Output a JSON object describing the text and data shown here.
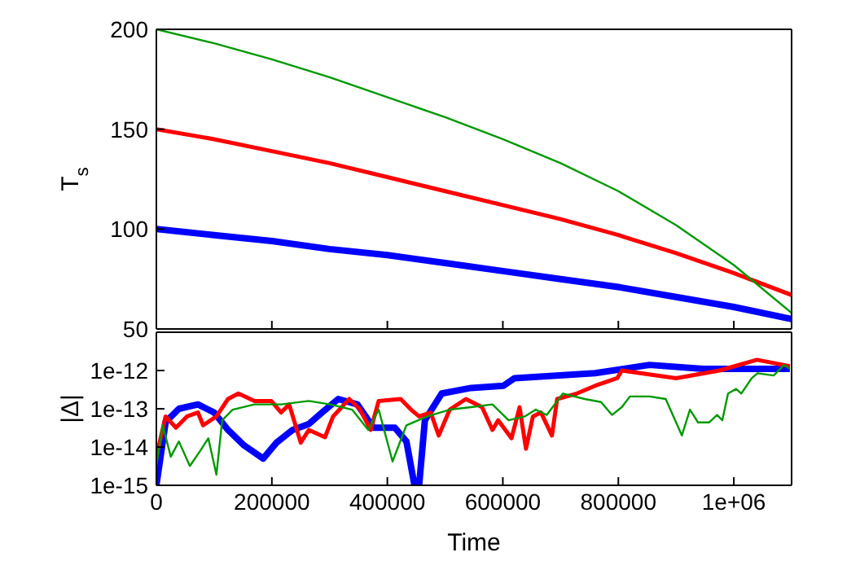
{
  "chart_data": [
    {
      "type": "line",
      "ylabel": "T$_{s}$",
      "xlim": [
        0,
        1100000
      ],
      "ylim": [
        50,
        200
      ],
      "yticks": [
        50,
        100,
        150,
        200
      ],
      "xticks": [
        0,
        200000,
        400000,
        600000,
        800000,
        1000000
      ],
      "tick_labels": "y",
      "marker": "none",
      "line_style": "solid",
      "series": [
        {
          "color": "#0000ff",
          "x": [
            0,
            100000,
            200000,
            300000,
            400000,
            500000,
            600000,
            700000,
            800000,
            900000,
            1000000,
            1100000
          ],
          "values": [
            100,
            97,
            94,
            90,
            87,
            83,
            79,
            75,
            71,
            66,
            61,
            55
          ]
        },
        {
          "color": "#ff0000",
          "x": [
            0,
            100000,
            200000,
            300000,
            400000,
            500000,
            600000,
            700000,
            800000,
            900000,
            1000000,
            1100000
          ],
          "values": [
            150,
            145,
            139,
            133,
            126,
            119,
            112,
            105,
            97,
            88,
            78,
            67
          ]
        },
        {
          "color": "#009900",
          "x": [
            0,
            100000,
            200000,
            300000,
            400000,
            500000,
            600000,
            700000,
            800000,
            900000,
            1000000,
            1100000
          ],
          "values": [
            200,
            193,
            185,
            176,
            166,
            156,
            145,
            133,
            119,
            102,
            82,
            58
          ]
        }
      ]
    },
    {
      "type": "line",
      "xlabel": "Time",
      "ylabel": "|Δ|",
      "log": "y",
      "xlim": [
        0,
        1100000
      ],
      "ylim": [
        1e-15,
        1e-11
      ],
      "yticks": [
        {
          "value": 1e-15,
          "label": "1e-15"
        },
        {
          "value": 1e-14,
          "label": "1e-14"
        },
        {
          "value": 1e-13,
          "label": "1e-13"
        },
        {
          "value": 1e-12,
          "label": "1e-12"
        }
      ],
      "xticks": [
        0,
        200000,
        400000,
        600000,
        800000,
        {
          "value": 1000000,
          "label": "1e+06"
        }
      ],
      "marker": "none",
      "line_style": "solid",
      "series": [
        {
          "color": "#0000ff",
          "x": [
            0,
            16000,
            39000,
            72000,
            100000,
            124000,
            152000,
            185000,
            208000,
            236000,
            264000,
            287000,
            315000,
            348000,
            376000,
            413000,
            433000,
            447000,
            455000,
            465000,
            494000,
            545000,
            601000,
            620000,
            760000,
            854000,
            947000,
            1097000
          ],
          "values": [
            1e-15,
            4.5e-14,
            1e-13,
            1.3e-13,
            8e-14,
            2.8e-14,
            1.1e-14,
            5e-15,
            1.3e-14,
            2.8e-14,
            4e-14,
            8e-14,
            1.8e-13,
            1.3e-13,
            3.2e-14,
            3.2e-14,
            1.4e-14,
            1e-15,
            1e-15,
            5e-14,
            2.5e-13,
            3.5e-13,
            4e-13,
            6.3e-13,
            8.5e-13,
            1.4e-12,
            1.1e-12,
            1.1e-12
          ]
        },
        {
          "color": "#ff0000",
          "x": [
            0,
            16000,
            34000,
            53000,
            72000,
            81000,
            104000,
            124000,
            142000,
            170000,
            199000,
            216000,
            230000,
            250000,
            264000,
            292000,
            306000,
            334000,
            353000,
            371000,
            385000,
            423000,
            441000,
            455000,
            475000,
            489000,
            508000,
            536000,
            564000,
            582000,
            592000,
            615000,
            629000,
            640000,
            652000,
            666000,
            685000,
            694000,
            728000,
            760000,
            798000,
            806000,
            900000,
            975000,
            1040000,
            1097000
          ],
          "values": [
            5.6e-15,
            6.3e-14,
            3.2e-14,
            6.3e-14,
            8e-14,
            3.7e-14,
            6.3e-14,
            1.8e-13,
            2.5e-13,
            1.6e-13,
            1.6e-13,
            8e-14,
            1.3e-13,
            1.3e-14,
            2.8e-14,
            1.8e-14,
            6.3e-14,
            1.8e-13,
            9.5e-14,
            2.8e-14,
            1.6e-13,
            1.8e-13,
            9.5e-14,
            6.3e-14,
            8e-14,
            2e-14,
            9.5e-14,
            1.8e-13,
            1.1e-13,
            2.8e-14,
            5e-14,
            1.7e-14,
            1.1e-13,
            9e-15,
            6.3e-14,
            8e-14,
            2e-14,
            1.8e-13,
            2.5e-13,
            4e-13,
            6.3e-13,
            1e-12,
            6.3e-13,
            1e-12,
            1.9e-12,
            1.3e-12
          ]
        },
        {
          "color": "#009900",
          "x": [
            0,
            11000,
            25000,
            39000,
            58000,
            76000,
            90000,
            104000,
            114000,
            132000,
            170000,
            216000,
            264000,
            301000,
            339000,
            367000,
            385000,
            409000,
            433000,
            469000,
            508000,
            545000,
            582000,
            610000,
            638000,
            657000,
            676000,
            704000,
            742000,
            770000,
            789000,
            806000,
            820000,
            854000,
            882000,
            910000,
            924000,
            938000,
            957000,
            971000,
            980000,
            990000,
            1004000,
            1013000,
            1031000,
            1041000,
            1069000,
            1087000,
            1097000
          ],
          "values": [
            3.2e-15,
            3.7e-14,
            5.6e-15,
            1.4e-14,
            3.2e-15,
            8e-15,
            1.7e-14,
            1.9e-15,
            5e-14,
            9.5e-14,
            1.3e-13,
            1.3e-13,
            1.6e-13,
            1.3e-13,
            9.5e-14,
            2.8e-14,
            9.5e-14,
            4.2e-15,
            3.7e-14,
            6.3e-14,
            9.5e-14,
            1.1e-13,
            1.3e-13,
            5e-14,
            6.3e-14,
            9.5e-14,
            6.9e-14,
            2.5e-13,
            1.8e-13,
            1.5e-13,
            6.9e-14,
            1.1e-13,
            2.1e-13,
            2.1e-13,
            1.8e-13,
            2e-14,
            9.5e-14,
            4.4e-14,
            4.4e-14,
            6.9e-14,
            5e-14,
            2.5e-13,
            3.3e-13,
            2.5e-13,
            6.3e-13,
            8.5e-13,
            7.4e-13,
            1.4e-12,
            1.1e-12
          ]
        }
      ]
    }
  ]
}
